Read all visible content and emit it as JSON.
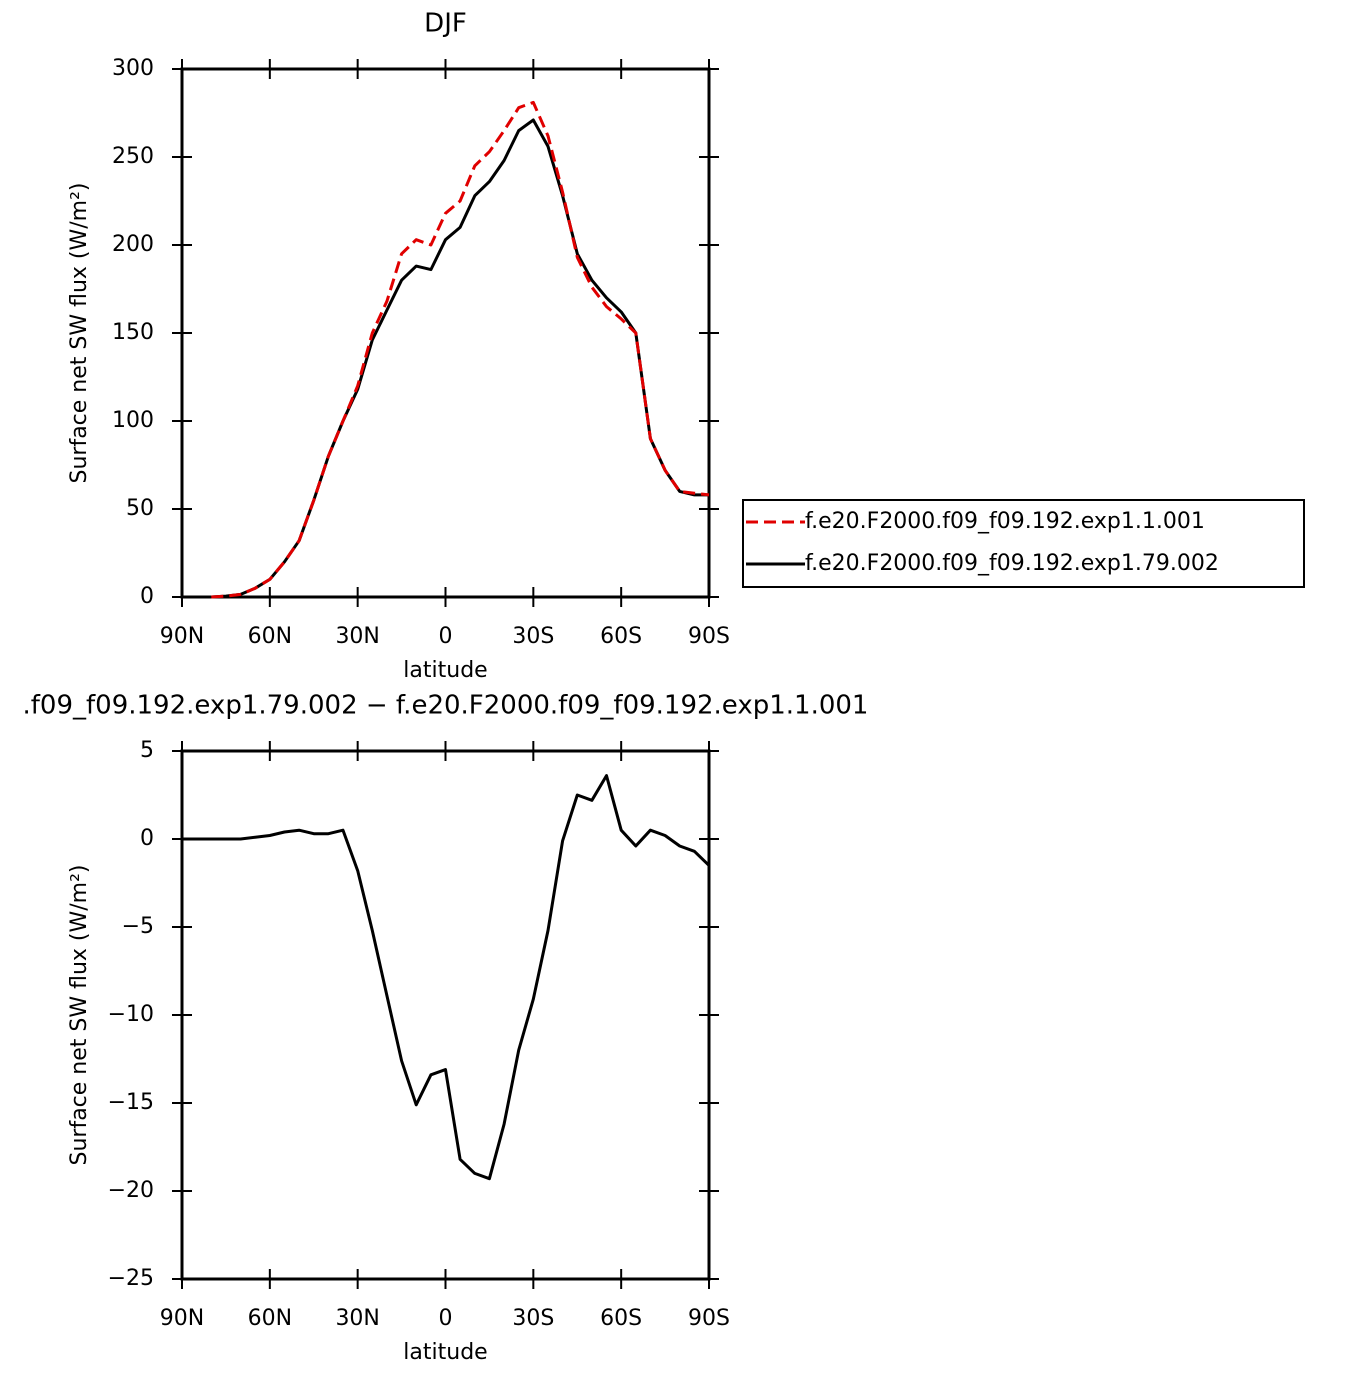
{
  "chart_data": [
    {
      "type": "line",
      "title": "DJF",
      "x_label": "latitude",
      "y_label": "Surface net SW flux (W/m²)",
      "x": [
        90,
        85,
        80,
        75,
        70,
        65,
        60,
        55,
        50,
        45,
        40,
        35,
        30,
        25,
        20,
        15,
        10,
        5,
        0,
        -5,
        -10,
        -15,
        -20,
        -25,
        -30,
        -35,
        -40,
        -45,
        -50,
        -55,
        -60,
        -65,
        -70,
        -75,
        -80,
        -85,
        -90
      ],
      "xlim": [
        90,
        -90
      ],
      "xticks": [
        {
          "value": 90,
          "label": "90N"
        },
        {
          "value": 60,
          "label": "60N"
        },
        {
          "value": 30,
          "label": "30N"
        },
        0,
        {
          "value": -30,
          "label": "30S"
        },
        {
          "value": -60,
          "label": "60S"
        },
        {
          "value": -90,
          "label": "90S"
        }
      ],
      "ylim": [
        0,
        300
      ],
      "yticks": [
        0,
        50,
        100,
        150,
        200,
        250,
        300
      ],
      "legend": "right",
      "series": [
        {
          "name": "f.e20.F2000.f09_f09.192.exp1.1.001",
          "color": "#e00000",
          "dash": true,
          "values": [
            null,
            null,
            0,
            0.5,
            1.5,
            5,
            10,
            20,
            32,
            55,
            80,
            100,
            120,
            150,
            168,
            195,
            203,
            200,
            218,
            225,
            245,
            253,
            265,
            278,
            281,
            262,
            230,
            193,
            176,
            165,
            158,
            150,
            90,
            72,
            60,
            59,
            58
          ]
        },
        {
          "name": "f.e20.F2000.f09_f09.192.exp1.79.002",
          "color": "#000000",
          "dash": false,
          "values": [
            null,
            null,
            0,
            0.5,
            1.5,
            5,
            10,
            20,
            32,
            55,
            80,
            100,
            118,
            146,
            163,
            180,
            188,
            186,
            203,
            210,
            228,
            236,
            248,
            265,
            271,
            256,
            228,
            195,
            180,
            170,
            162,
            150,
            90,
            72,
            60,
            58,
            58
          ]
        }
      ]
    },
    {
      "type": "line",
      "title": ".f09_f09.192.exp1.79.002 − f.e20.F2000.f09_f09.192.exp1.1.001",
      "x_label": "latitude",
      "y_label": "Surface net SW flux (W/m²)",
      "x": [
        90,
        85,
        80,
        75,
        70,
        65,
        60,
        55,
        50,
        45,
        40,
        35,
        30,
        25,
        20,
        15,
        10,
        5,
        0,
        -5,
        -10,
        -15,
        -20,
        -25,
        -30,
        -35,
        -40,
        -45,
        -50,
        -55,
        -60,
        -65,
        -70,
        -75,
        -80,
        -85,
        -90
      ],
      "xlim": [
        90,
        -90
      ],
      "xticks": [
        {
          "value": 90,
          "label": "90N"
        },
        {
          "value": 60,
          "label": "60N"
        },
        {
          "value": 30,
          "label": "30N"
        },
        0,
        {
          "value": -30,
          "label": "30S"
        },
        {
          "value": -60,
          "label": "60S"
        },
        {
          "value": -90,
          "label": "90S"
        }
      ],
      "ylim": [
        -25,
        5
      ],
      "yticks": [
        {
          "value": -25,
          "label": "−25"
        },
        {
          "value": -20,
          "label": "−20"
        },
        {
          "value": -15,
          "label": "−15"
        },
        {
          "value": -10,
          "label": "−10"
        },
        {
          "value": -5,
          "label": "−5"
        },
        0,
        5
      ],
      "color": "#000000",
      "values": [
        0,
        0,
        0,
        0,
        0,
        0.1,
        0.2,
        0.4,
        0.5,
        0.3,
        0.3,
        0.5,
        -1.8,
        -5.2,
        -8.9,
        -12.6,
        -15.1,
        -13.4,
        -13.1,
        -18.2,
        -19,
        -19.3,
        -16.2,
        -12,
        -9.1,
        -5.2,
        -0.1,
        2.5,
        2.2,
        3.6,
        0.5,
        -0.4,
        0.5,
        0.2,
        -0.4,
        -0.7,
        -1.5
      ]
    }
  ]
}
